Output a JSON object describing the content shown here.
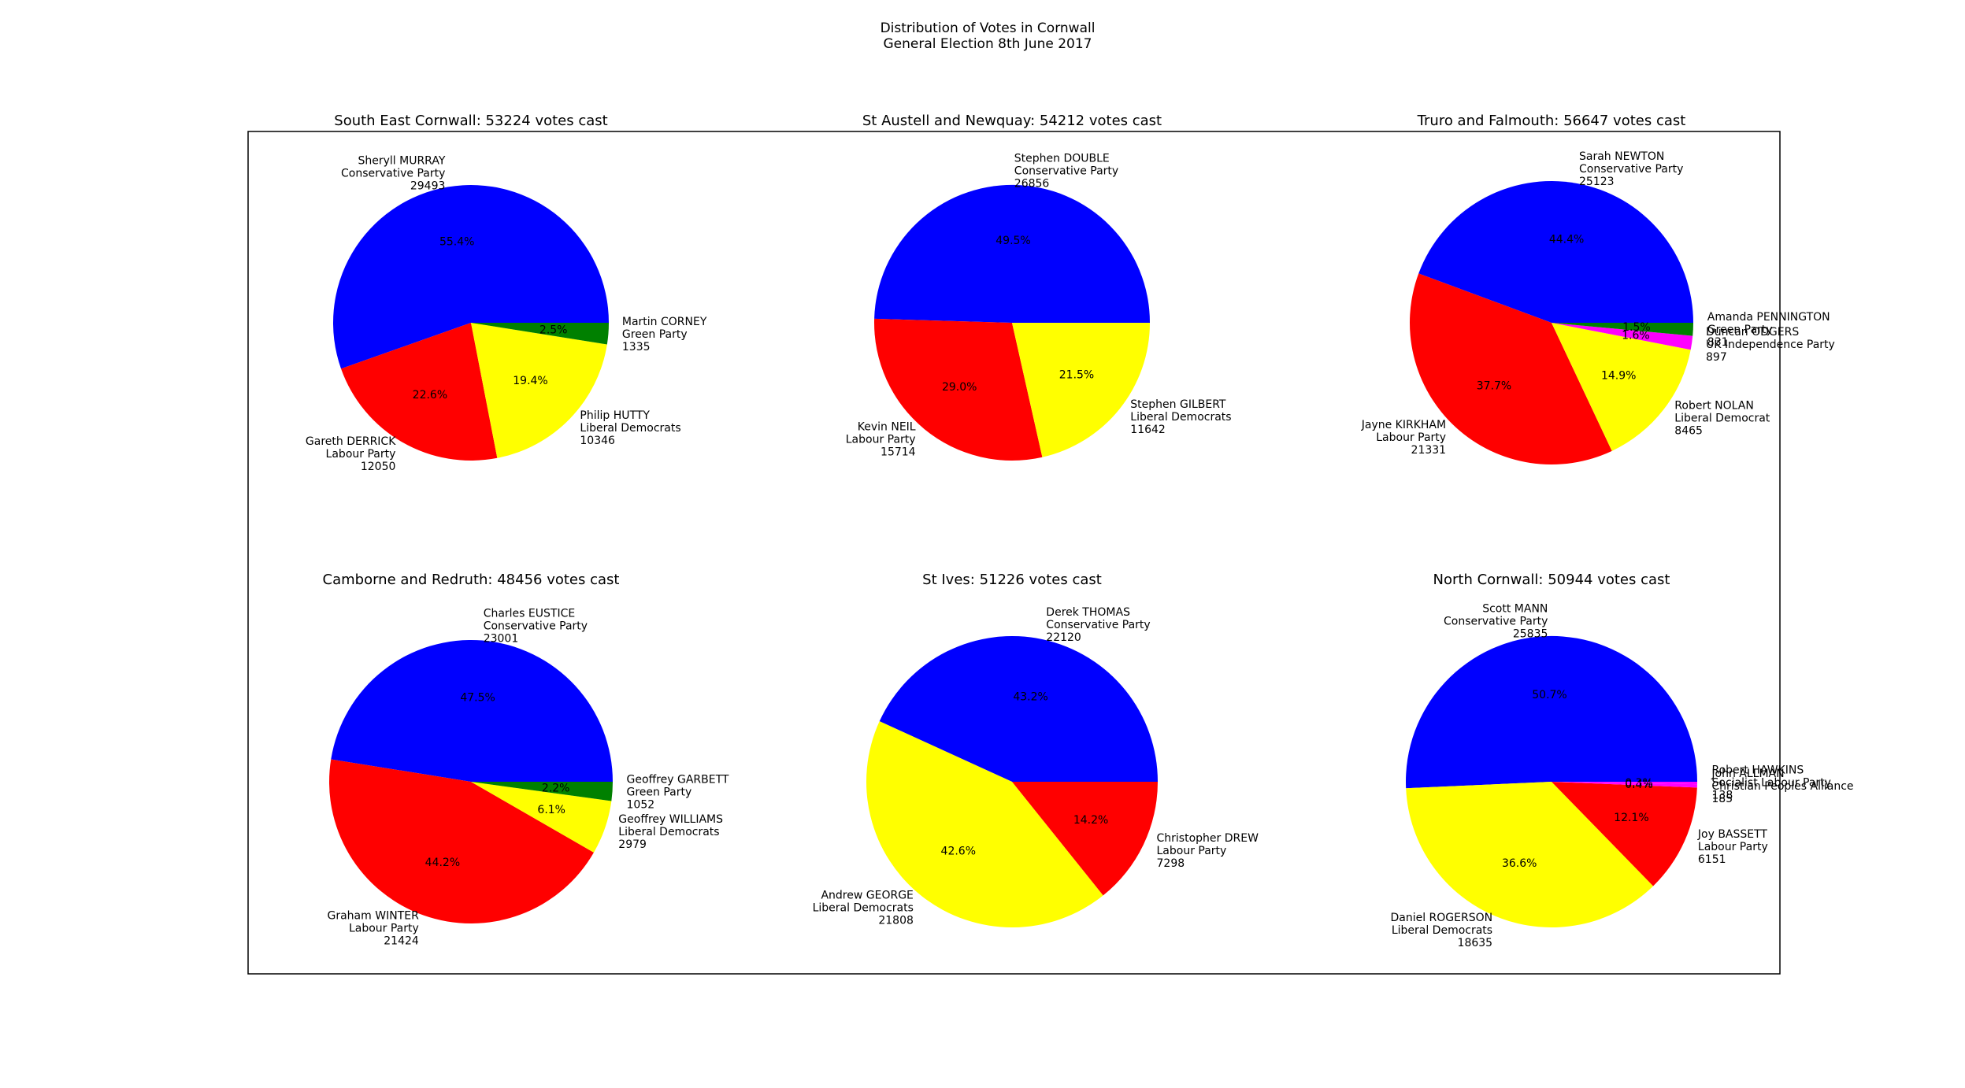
{
  "figure": {
    "title_lines": [
      "Distribution of Votes in Cornwall",
      "General Election 8th June 2017"
    ]
  },
  "chart_data": [
    {
      "type": "pie",
      "title": "South East Cornwall: 53224 votes cast",
      "slices": [
        {
          "candidate": "Sheryll MURRAY",
          "party": "Conservative Party",
          "votes": 29493,
          "pct": "55.4%",
          "color": "#0000ff"
        },
        {
          "candidate": "Gareth DERRICK",
          "party": "Labour Party",
          "votes": 12050,
          "pct": "22.6%",
          "color": "#ff0000"
        },
        {
          "candidate": "Philip HUTTY",
          "party": "Liberal Democrats",
          "votes": 10346,
          "pct": "19.4%",
          "color": "#ffff00"
        },
        {
          "candidate": "Martin CORNEY",
          "party": "Green Party",
          "votes": 1335,
          "pct": "2.5%",
          "color": "#008000"
        }
      ]
    },
    {
      "type": "pie",
      "title": "St Austell and Newquay: 54212 votes cast",
      "slices": [
        {
          "candidate": "Stephen DOUBLE",
          "party": "Conservative Party",
          "votes": 26856,
          "pct": "49.5%",
          "color": "#0000ff"
        },
        {
          "candidate": "Kevin NEIL",
          "party": "Labour Party",
          "votes": 15714,
          "pct": "29.0%",
          "color": "#ff0000"
        },
        {
          "candidate": "Stephen GILBERT",
          "party": "Liberal Democrats",
          "votes": 11642,
          "pct": "21.5%",
          "color": "#ffff00"
        }
      ]
    },
    {
      "type": "pie",
      "title": "Truro and Falmouth: 56647 votes cast",
      "slices": [
        {
          "candidate": "Sarah NEWTON",
          "party": "Conservative Party",
          "votes": 25123,
          "pct": "44.4%",
          "color": "#0000ff"
        },
        {
          "candidate": "Jayne KIRKHAM",
          "party": "Labour Party",
          "votes": 21331,
          "pct": "37.7%",
          "color": "#ff0000"
        },
        {
          "candidate": "Robert NOLAN",
          "party": "Liberal Democrat",
          "votes": 8465,
          "pct": "14.9%",
          "color": "#ffff00"
        },
        {
          "candidate": "Duncan ODGERS",
          "party": "UK Independence Party",
          "votes": 897,
          "pct": "1.6%",
          "color": "#ff00ff"
        },
        {
          "candidate": "Amanda PENNINGTON",
          "party": "Green Party",
          "votes": 831,
          "pct": "1.5%",
          "color": "#008000"
        }
      ]
    },
    {
      "type": "pie",
      "title": "Camborne and Redruth: 48456 votes cast",
      "slices": [
        {
          "candidate": "Charles EUSTICE",
          "party": "Conservative Party",
          "votes": 23001,
          "pct": "47.5%",
          "color": "#0000ff"
        },
        {
          "candidate": "Graham WINTER",
          "party": "Labour Party",
          "votes": 21424,
          "pct": "44.2%",
          "color": "#ff0000"
        },
        {
          "candidate": "Geoffrey WILLIAMS",
          "party": "Liberal Democrats",
          "votes": 2979,
          "pct": "6.1%",
          "color": "#ffff00"
        },
        {
          "candidate": "Geoffrey GARBETT",
          "party": "Green Party",
          "votes": 1052,
          "pct": "2.2%",
          "color": "#008000"
        }
      ]
    },
    {
      "type": "pie",
      "title": "St Ives: 51226 votes cast",
      "slices": [
        {
          "candidate": "Derek THOMAS",
          "party": "Conservative Party",
          "votes": 22120,
          "pct": "43.2%",
          "color": "#0000ff"
        },
        {
          "candidate": "Andrew GEORGE",
          "party": "Liberal Democrats",
          "votes": 21808,
          "pct": "42.6%",
          "color": "#ffff00"
        },
        {
          "candidate": "Christopher DREW",
          "party": "Labour Party",
          "votes": 7298,
          "pct": "14.2%",
          "color": "#ff0000"
        }
      ]
    },
    {
      "type": "pie",
      "title": "North Cornwall: 50944 votes cast",
      "slices": [
        {
          "candidate": "Scott MANN",
          "party": "Conservative Party",
          "votes": 25835,
          "pct": "50.7%",
          "color": "#0000ff"
        },
        {
          "candidate": "Daniel ROGERSON",
          "party": "Liberal Democrats",
          "votes": 18635,
          "pct": "36.6%",
          "color": "#ffff00"
        },
        {
          "candidate": "Joy BASSETT",
          "party": "Labour Party",
          "votes": 6151,
          "pct": "12.1%",
          "color": "#ff0000"
        },
        {
          "candidate": "John ALLMAN",
          "party": "Christian Peoples Alliance",
          "votes": 185,
          "pct": "0.4%",
          "color": "#ff00ff"
        },
        {
          "candidate": "Robert HAWKINS",
          "party": "Socialist Labour Party",
          "votes": 138,
          "pct": "0.3%",
          "color": "#ff00ff"
        }
      ]
    }
  ]
}
